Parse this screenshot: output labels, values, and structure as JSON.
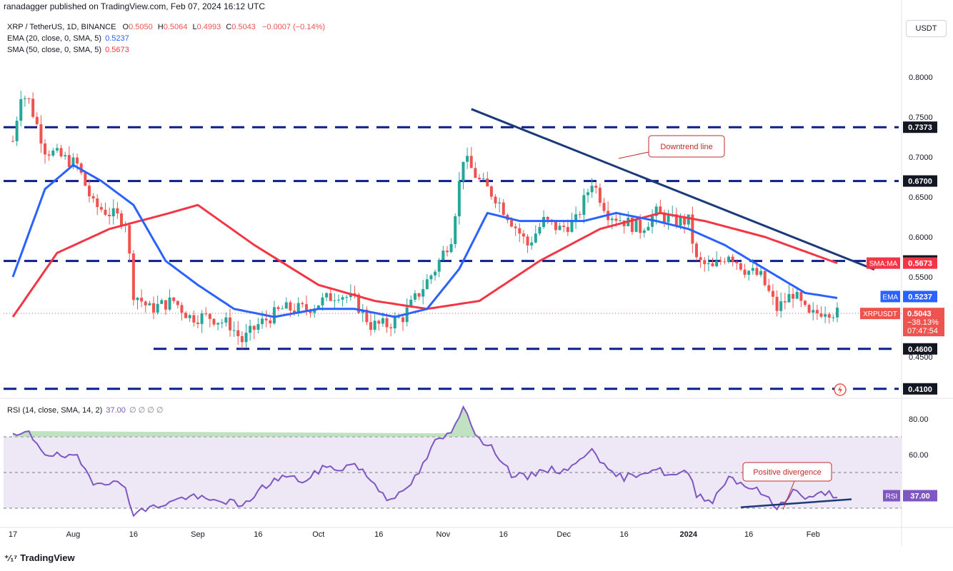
{
  "header": {
    "published": "ranadagger published on TradingView.com, Feb 07, 2024 16:12 UTC"
  },
  "legend": {
    "symbol": "XRP / TetherUS, 1D, BINANCE",
    "open_label": "O",
    "open": "0.5050",
    "high_label": "H",
    "high": "0.5064",
    "low_label": "L",
    "low": "0.4993",
    "close_label": "C",
    "close": "0.5043",
    "change": "−0.0007 (−0.14%)",
    "ema_label": "EMA (20, close, 0, SMA, 5)",
    "ema_value": "0.5237",
    "sma_label": "SMA (50, close, 0, SMA, 5)",
    "sma_value": "0.5673"
  },
  "rsi_legend": {
    "label": "RSI (14, close, SMA, 14, 2)",
    "value": "37.00",
    "extras": "∅ ∅ ∅ ∅"
  },
  "currency_button": "USDT",
  "footer": {
    "brand": "TradingView"
  },
  "annotations": {
    "downtrend": "Downtrend line",
    "divergence": "Positive divergence"
  },
  "colors": {
    "up": "#26a69a",
    "down": "#ef5350",
    "ema": "#2962ff",
    "sma": "#f23645",
    "level": "#0b1e8c",
    "trend": "#1c3a7a",
    "rsi": "#7e57c2",
    "rsi_band": "#ede7f6",
    "badge": "#131722"
  },
  "chart_data": [
    {
      "type": "candlestick",
      "title": "XRP / TetherUS, 1D, BINANCE",
      "y_range": [
        0.41,
        0.86
      ],
      "x_range": [
        "2023-07-17",
        "2024-02-07"
      ],
      "x_ticks": [
        "17",
        "Aug",
        "16",
        "Sep",
        "16",
        "Oct",
        "16",
        "Nov",
        "16",
        "Dec",
        "16",
        "2024",
        "16",
        "Feb"
      ],
      "y_ticks": [
        "0.8000",
        "0.7500",
        "0.7000",
        "0.6500",
        "0.6000",
        "0.5500",
        "0.4500"
      ],
      "close_path": [
        [
          "2023-07-17",
          0.72
        ],
        [
          "2023-07-19",
          0.78
        ],
        [
          "2023-07-21",
          0.77
        ],
        [
          "2023-07-25",
          0.71
        ],
        [
          "2023-07-29",
          0.7
        ],
        [
          "2023-08-02",
          0.69
        ],
        [
          "2023-08-06",
          0.64
        ],
        [
          "2023-08-10",
          0.63
        ],
        [
          "2023-08-14",
          0.62
        ],
        [
          "2023-08-16",
          0.53
        ],
        [
          "2023-08-20",
          0.51
        ],
        [
          "2023-08-26",
          0.52
        ],
        [
          "2023-08-30",
          0.5
        ],
        [
          "2023-09-04",
          0.5
        ],
        [
          "2023-09-09",
          0.49
        ],
        [
          "2023-09-12",
          0.47
        ],
        [
          "2023-09-16",
          0.49
        ],
        [
          "2023-09-22",
          0.51
        ],
        [
          "2023-09-28",
          0.51
        ],
        [
          "2023-10-02",
          0.52
        ],
        [
          "2023-10-06",
          0.53
        ],
        [
          "2023-10-10",
          0.52
        ],
        [
          "2023-10-14",
          0.49
        ],
        [
          "2023-10-18",
          0.49
        ],
        [
          "2023-10-22",
          0.5
        ],
        [
          "2023-10-26",
          0.53
        ],
        [
          "2023-10-30",
          0.56
        ],
        [
          "2023-11-03",
          0.6
        ],
        [
          "2023-11-06",
          0.7
        ],
        [
          "2023-11-10",
          0.67
        ],
        [
          "2023-11-14",
          0.65
        ],
        [
          "2023-11-18",
          0.62
        ],
        [
          "2023-11-22",
          0.59
        ],
        [
          "2023-11-26",
          0.62
        ],
        [
          "2023-11-30",
          0.61
        ],
        [
          "2023-12-04",
          0.62
        ],
        [
          "2023-12-08",
          0.67
        ],
        [
          "2023-12-12",
          0.63
        ],
        [
          "2023-12-16",
          0.62
        ],
        [
          "2023-12-20",
          0.61
        ],
        [
          "2023-12-24",
          0.63
        ],
        [
          "2023-12-28",
          0.62
        ],
        [
          "2024-01-01",
          0.62
        ],
        [
          "2024-01-03",
          0.57
        ],
        [
          "2024-01-07",
          0.56
        ],
        [
          "2024-01-11",
          0.58
        ],
        [
          "2024-01-15",
          0.56
        ],
        [
          "2024-01-19",
          0.55
        ],
        [
          "2024-01-23",
          0.51
        ],
        [
          "2024-01-27",
          0.53
        ],
        [
          "2024-01-31",
          0.5
        ],
        [
          "2024-02-04",
          0.51
        ],
        [
          "2024-02-07",
          0.5043
        ]
      ],
      "ema20": [
        [
          "2023-07-17",
          0.55
        ],
        [
          "2023-07-25",
          0.66
        ],
        [
          "2023-08-01",
          0.69
        ],
        [
          "2023-08-08",
          0.67
        ],
        [
          "2023-08-16",
          0.64
        ],
        [
          "2023-08-24",
          0.57
        ],
        [
          "2023-09-01",
          0.54
        ],
        [
          "2023-09-10",
          0.51
        ],
        [
          "2023-09-20",
          0.5
        ],
        [
          "2023-10-01",
          0.51
        ],
        [
          "2023-10-10",
          0.51
        ],
        [
          "2023-10-20",
          0.5
        ],
        [
          "2023-10-28",
          0.51
        ],
        [
          "2023-11-05",
          0.56
        ],
        [
          "2023-11-12",
          0.63
        ],
        [
          "2023-11-20",
          0.62
        ],
        [
          "2023-11-28",
          0.62
        ],
        [
          "2023-12-06",
          0.62
        ],
        [
          "2023-12-14",
          0.63
        ],
        [
          "2023-12-24",
          0.62
        ],
        [
          "2024-01-01",
          0.61
        ],
        [
          "2024-01-10",
          0.59
        ],
        [
          "2024-01-20",
          0.56
        ],
        [
          "2024-01-30",
          0.53
        ],
        [
          "2024-02-07",
          0.5237
        ]
      ],
      "sma50": [
        [
          "2023-07-17",
          0.5
        ],
        [
          "2023-07-28",
          0.58
        ],
        [
          "2023-08-10",
          0.61
        ],
        [
          "2023-08-25",
          0.63
        ],
        [
          "2023-09-01",
          0.64
        ],
        [
          "2023-09-15",
          0.59
        ],
        [
          "2023-10-01",
          0.54
        ],
        [
          "2023-10-15",
          0.52
        ],
        [
          "2023-10-28",
          0.51
        ],
        [
          "2023-11-10",
          0.52
        ],
        [
          "2023-11-25",
          0.57
        ],
        [
          "2023-12-10",
          0.61
        ],
        [
          "2023-12-25",
          0.63
        ],
        [
          "2024-01-05",
          0.62
        ],
        [
          "2024-01-20",
          0.6
        ],
        [
          "2024-02-07",
          0.5673
        ]
      ],
      "horizontal_levels": [
        "0.7373",
        "0.6700",
        "0.5700",
        "0.4600",
        "0.4100"
      ],
      "downtrend_line": [
        [
          "2023-11-08",
          0.76
        ],
        [
          "2024-02-10",
          0.57
        ]
      ],
      "price_badges": [
        {
          "label": "SMA:MA",
          "value": "0.5673"
        },
        {
          "label": "EMA",
          "value": "0.5237"
        },
        {
          "label": "XRPUSDT",
          "value": "0.5043",
          "change": "−38.13%",
          "countdown": "07:47:54"
        }
      ]
    },
    {
      "type": "line",
      "title": "RSI (14, close, SMA, 14, 2)",
      "y_range": [
        20,
        92
      ],
      "y_ticks": [
        "80.00",
        "60.00"
      ],
      "band": [
        30,
        70
      ],
      "last_value": "37.00",
      "series": [
        [
          "2023-07-17",
          70
        ],
        [
          "2023-07-21",
          72
        ],
        [
          "2023-07-25",
          61
        ],
        [
          "2023-07-29",
          59
        ],
        [
          "2023-08-02",
          58
        ],
        [
          "2023-08-06",
          45
        ],
        [
          "2023-08-10",
          45
        ],
        [
          "2023-08-14",
          42
        ],
        [
          "2023-08-16",
          27
        ],
        [
          "2023-08-20",
          30
        ],
        [
          "2023-08-26",
          34
        ],
        [
          "2023-08-30",
          37
        ],
        [
          "2023-09-04",
          34
        ],
        [
          "2023-09-09",
          34
        ],
        [
          "2023-09-12",
          30
        ],
        [
          "2023-09-16",
          40
        ],
        [
          "2023-09-22",
          48
        ],
        [
          "2023-09-28",
          45
        ],
        [
          "2023-10-02",
          53
        ],
        [
          "2023-10-06",
          52
        ],
        [
          "2023-10-10",
          55
        ],
        [
          "2023-10-14",
          46
        ],
        [
          "2023-10-18",
          36
        ],
        [
          "2023-10-22",
          38
        ],
        [
          "2023-10-26",
          50
        ],
        [
          "2023-10-30",
          67
        ],
        [
          "2023-11-03",
          72
        ],
        [
          "2023-11-06",
          88
        ],
        [
          "2023-11-10",
          68
        ],
        [
          "2023-11-14",
          62
        ],
        [
          "2023-11-18",
          49
        ],
        [
          "2023-11-22",
          47
        ],
        [
          "2023-11-26",
          52
        ],
        [
          "2023-11-30",
          51
        ],
        [
          "2023-12-04",
          54
        ],
        [
          "2023-12-08",
          65
        ],
        [
          "2023-12-12",
          50
        ],
        [
          "2023-12-16",
          47
        ],
        [
          "2023-12-20",
          50
        ],
        [
          "2023-12-24",
          52
        ],
        [
          "2023-12-28",
          48
        ],
        [
          "2024-01-01",
          50
        ],
        [
          "2024-01-03",
          38
        ],
        [
          "2024-01-07",
          34
        ],
        [
          "2024-01-11",
          48
        ],
        [
          "2024-01-15",
          43
        ],
        [
          "2024-01-19",
          39
        ],
        [
          "2024-01-23",
          30
        ],
        [
          "2024-01-27",
          40
        ],
        [
          "2024-01-31",
          35
        ],
        [
          "2024-02-04",
          39
        ],
        [
          "2024-02-07",
          37
        ]
      ],
      "divergence_line": [
        [
          "2024-01-14",
          30.5
        ],
        [
          "2024-02-07",
          35
        ]
      ]
    }
  ]
}
